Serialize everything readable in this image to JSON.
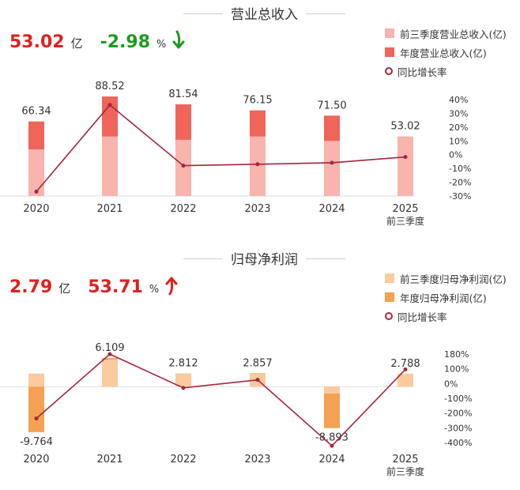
{
  "colors": {
    "revenue_q3": "#f8b4ad",
    "revenue_annual": "#ef6559",
    "profit_q3": "#fbcb9d",
    "profit_annual": "#f5a151",
    "yoy_line": "#a5253f",
    "kpi_red": "#e02020",
    "kpi_green": "#1e9a1e"
  },
  "revenue_panel": {
    "title": "营业总收入",
    "kpi_value": "53.02",
    "kpi_unit": "亿",
    "kpi_change": "-2.98",
    "kpi_change_unit": "%",
    "kpi_direction": "down",
    "legend": [
      "前三季度营业总收入(亿)",
      "年度营业总收入(亿)",
      "同比增长率"
    ]
  },
  "profit_panel": {
    "title": "归母净利润",
    "kpi_value": "2.79",
    "kpi_unit": "亿",
    "kpi_change": "53.71",
    "kpi_change_unit": "%",
    "kpi_direction": "up",
    "legend": [
      "前三季度归母净利润(亿)",
      "年度归母净利润(亿)",
      "同比增长率"
    ]
  },
  "chart_data": [
    {
      "type": "bar",
      "title": "营业总收入",
      "categories": [
        "2020",
        "2021",
        "2022",
        "2023",
        "2024",
        "2025"
      ],
      "category_sublabels": [
        "",
        "",
        "",
        "",
        "",
        "前三季度"
      ],
      "series": [
        {
          "name": "前三季度营业总收入(亿)",
          "values": [
            41.5,
            53.0,
            50.0,
            53.0,
            49.0,
            53.02
          ]
        },
        {
          "name": "年度营业总收入(亿)",
          "values": [
            66.34,
            88.52,
            81.54,
            76.15,
            71.5,
            null
          ]
        },
        {
          "name": "同比增长率",
          "type": "line",
          "axis": "right",
          "values": [
            -27,
            33,
            -9,
            -8,
            -7,
            -3
          ]
        }
      ],
      "bar_labels": [
        "66.34",
        "88.52",
        "81.54",
        "76.15",
        "71.50",
        "53.02"
      ],
      "ylim": [
        0,
        90
      ],
      "y2lim": [
        -30,
        40
      ],
      "y2ticks": [
        "40%",
        "30%",
        "20%",
        "10%",
        "0%",
        "-10%",
        "-20%",
        "-30%"
      ],
      "legend_position": "top-right"
    },
    {
      "type": "bar",
      "title": "归母净利润",
      "categories": [
        "2020",
        "2021",
        "2022",
        "2023",
        "2024",
        "2025"
      ],
      "category_sublabels": [
        "",
        "",
        "",
        "",
        "",
        "前三季度"
      ],
      "series": [
        {
          "name": "前三季度归母净利润(亿)",
          "values": [
            2.8,
            5.8,
            2.8,
            2.75,
            -1.5,
            2.788
          ]
        },
        {
          "name": "年度归母净利润(亿)",
          "values": [
            -9.764,
            6.109,
            2.812,
            2.857,
            -8.893,
            null
          ]
        },
        {
          "name": "同比增长率",
          "type": "line",
          "axis": "right",
          "values": [
            -250,
            150,
            -60,
            -10,
            -420,
            55
          ]
        }
      ],
      "bar_labels": [
        "-9.764",
        "6.109",
        "2.812",
        "2.857",
        "-8.893",
        "2.788"
      ],
      "ylim": [
        -12,
        8
      ],
      "y2lim": [
        -400,
        180
      ],
      "y2ticks": [
        "180%",
        "100%",
        "0%",
        "-100%",
        "-200%",
        "-300%",
        "-400%"
      ],
      "legend_position": "top-right"
    }
  ]
}
